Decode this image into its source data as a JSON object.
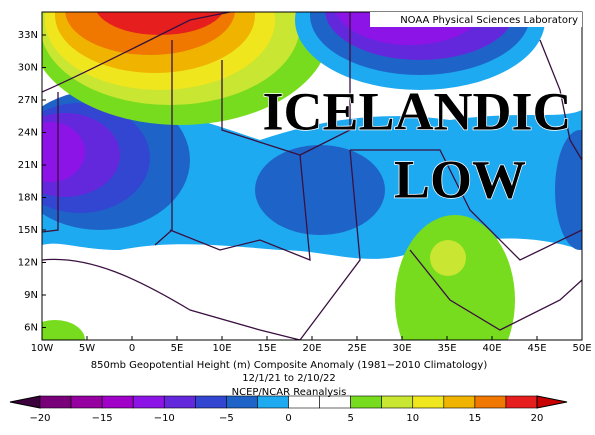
{
  "header": {
    "credit": "NOAA Physical Sciences Laboratory"
  },
  "overlay": {
    "line1": "ICELANDIC",
    "line2": "LOW"
  },
  "map": {
    "lat_labels": [
      "33N",
      "30N",
      "27N",
      "24N",
      "21N",
      "18N",
      "15N",
      "12N",
      "9N",
      "6N"
    ],
    "lon_labels": [
      "10W",
      "5W",
      "0",
      "5E",
      "10E",
      "15E",
      "20E",
      "25E",
      "30E",
      "35E",
      "40E",
      "45E",
      "50E"
    ]
  },
  "caption": {
    "line1": "850mb Geopotential Height (m) Composite Anomaly (1981−2010 Climatology)",
    "line2": "12/1/21  to 2/10/22",
    "source": "NCEP/NCAR Reanalysis"
  },
  "colorbar": {
    "labels": [
      "−20",
      "−15",
      "−10",
      "−5",
      "0",
      "5",
      "10",
      "15",
      "20"
    ],
    "colors": [
      "#780078",
      "#9600a0",
      "#a000c8",
      "#8c14e6",
      "#6428dc",
      "#3246d2",
      "#1e64c8",
      "#1eaaf0",
      "#ffffff",
      "#ffffff",
      "#78dc1e",
      "#c8e632",
      "#f0e61e",
      "#f0b400",
      "#f07800",
      "#e61e1e"
    ]
  }
}
